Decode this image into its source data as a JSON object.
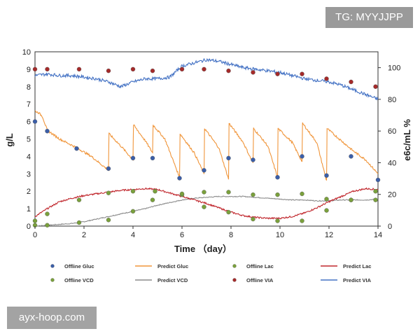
{
  "watermark_top": "TG: MYYJJPP",
  "watermark_bottom": "ayx-hoop.com",
  "chart_data": {
    "type": "line",
    "xlabel": "Time  （day）",
    "ylabel_left": "g/L",
    "ylabel_right": "e6c/mL   %",
    "xlim": [
      0,
      14
    ],
    "ylim_left": [
      0,
      10
    ],
    "ylim_right": [
      0,
      110
    ],
    "x_ticks": [
      "0",
      "2",
      "4",
      "6",
      "8",
      "10",
      "12",
      "14"
    ],
    "y_left_ticks": [
      "0",
      "1",
      "2",
      "3",
      "4",
      "5",
      "6",
      "7",
      "8",
      "9",
      "10"
    ],
    "y_right_ticks": [
      "0",
      "20",
      "40",
      "60",
      "80",
      "100"
    ],
    "colors": {
      "gluc_marker": "#3b5ea8",
      "gluc_line": "#f0953a",
      "lac_marker": "#7aa03c",
      "lac_line": "#c0262c",
      "vcd_marker": "#7aa03c",
      "vcd_line": "#8c8c8c",
      "via_marker": "#a52a2a",
      "via_line": "#4472c4"
    },
    "legend": [
      {
        "label": "Offline Gluc",
        "kind": "marker",
        "color": "#3b5ea8"
      },
      {
        "label": "Predict Gluc",
        "kind": "line",
        "color": "#f0953a"
      },
      {
        "label": "Offline Lac",
        "kind": "marker",
        "color": "#7aa03c"
      },
      {
        "label": "Predict Lac",
        "kind": "line",
        "color": "#c0262c"
      },
      {
        "label": "Offline VCD",
        "kind": "marker",
        "color": "#7aa03c"
      },
      {
        "label": "Predict VCD",
        "kind": "line",
        "color": "#8c8c8c"
      },
      {
        "label": "Offline VIA",
        "kind": "marker",
        "color": "#a52a2a"
      },
      {
        "label": "Predict VIA",
        "kind": "line",
        "color": "#4472c4"
      }
    ],
    "series": [
      {
        "name": "Offline Gluc",
        "axis": "left",
        "kind": "scatter",
        "x": [
          0,
          0.5,
          1.7,
          3.0,
          4.0,
          4.8,
          5.9,
          6.9,
          7.9,
          8.9,
          9.9,
          10.9,
          11.9,
          12.9,
          14.0
        ],
        "y": [
          6.0,
          5.45,
          4.45,
          3.3,
          3.9,
          3.9,
          2.75,
          3.2,
          3.9,
          3.8,
          2.8,
          4.0,
          2.9,
          4.0,
          2.65
        ]
      },
      {
        "name": "Offline Lac",
        "axis": "left",
        "kind": "scatter",
        "x": [
          0,
          0.5,
          1.8,
          3.0,
          4.0,
          4.9,
          6.0,
          6.9,
          7.9,
          8.9,
          9.9,
          10.9,
          11.9,
          12.9,
          13.9
        ],
        "y": [
          0.3,
          0.7,
          1.5,
          1.9,
          2.0,
          2.0,
          1.8,
          1.1,
          0.8,
          0.4,
          0.3,
          0.3,
          0.9,
          1.5,
          2.0
        ]
      },
      {
        "name": "Offline VCD",
        "axis": "left",
        "kind": "scatter",
        "x": [
          0,
          0.5,
          1.8,
          3.0,
          4.0,
          4.8,
          6.0,
          6.9,
          7.9,
          8.9,
          9.9,
          10.9,
          11.9,
          12.9,
          13.9
        ],
        "y": [
          0.05,
          0.05,
          0.2,
          0.35,
          0.85,
          1.5,
          1.85,
          1.95,
          1.95,
          1.8,
          1.8,
          1.85,
          1.55,
          1.5,
          1.5
        ]
      },
      {
        "name": "Offline VIA",
        "axis": "right",
        "kind": "scatter",
        "x": [
          0,
          0.5,
          1.8,
          3.0,
          4.0,
          4.8,
          6.0,
          6.9,
          7.9,
          8.9,
          9.9,
          10.9,
          11.9,
          12.9,
          13.9
        ],
        "y": [
          99,
          99,
          99,
          98,
          99,
          98,
          99,
          99,
          98,
          97,
          96,
          96,
          93,
          91,
          88
        ]
      },
      {
        "name": "Predict Gluc",
        "axis": "left",
        "kind": "line",
        "x": [
          0,
          0.15,
          0.3,
          0.5,
          1.0,
          1.7,
          2.3,
          3.0,
          3.02,
          3.5,
          4.0,
          4.02,
          4.5,
          4.8,
          4.82,
          5.3,
          5.9,
          5.92,
          6.5,
          6.9,
          6.92,
          7.5,
          7.9,
          7.92,
          8.5,
          8.9,
          8.92,
          9.5,
          9.9,
          9.92,
          10.5,
          10.9,
          10.92,
          11.5,
          11.9,
          11.92,
          12.5,
          13.0,
          13.5,
          14.0
        ],
        "y": [
          6.6,
          6.5,
          6.3,
          5.5,
          5.0,
          4.5,
          4.0,
          3.2,
          5.3,
          4.6,
          3.8,
          5.8,
          4.9,
          4.2,
          5.8,
          5.0,
          2.8,
          5.3,
          4.2,
          3.0,
          5.6,
          4.5,
          2.7,
          5.9,
          4.8,
          3.6,
          5.6,
          4.6,
          2.8,
          5.6,
          4.8,
          3.7,
          5.9,
          4.8,
          2.6,
          5.6,
          4.9,
          4.3,
          3.8,
          3.0
        ]
      },
      {
        "name": "Predict Lac",
        "axis": "left",
        "kind": "line",
        "x": [
          0,
          0.5,
          1.0,
          1.5,
          2.0,
          2.5,
          3.0,
          3.5,
          4.0,
          4.5,
          5.0,
          5.5,
          6.0,
          6.5,
          7.0,
          7.5,
          8.0,
          8.5,
          9.0,
          9.5,
          10.0,
          10.5,
          11.0,
          11.5,
          12.0,
          12.5,
          13.0,
          13.5,
          14.0
        ],
        "y": [
          0.55,
          1.0,
          1.4,
          1.6,
          1.75,
          1.85,
          1.95,
          2.05,
          2.1,
          2.15,
          2.1,
          1.9,
          1.7,
          1.5,
          1.3,
          1.05,
          0.8,
          0.6,
          0.5,
          0.45,
          0.45,
          0.55,
          0.75,
          1.05,
          1.4,
          1.7,
          2.0,
          2.15,
          2.1
        ]
      },
      {
        "name": "Predict VCD",
        "axis": "left",
        "kind": "line",
        "x": [
          0,
          0.5,
          1.0,
          1.5,
          2.0,
          2.5,
          3.0,
          3.5,
          4.0,
          4.5,
          5.0,
          5.5,
          6.0,
          6.5,
          7.0,
          7.5,
          8.0,
          8.5,
          9.0,
          9.5,
          10.0,
          10.5,
          11.0,
          11.5,
          12.0,
          12.5,
          13.0,
          13.5,
          14.0
        ],
        "y": [
          0.0,
          0.05,
          0.1,
          0.15,
          0.25,
          0.4,
          0.55,
          0.7,
          0.85,
          1.0,
          1.2,
          1.35,
          1.5,
          1.6,
          1.65,
          1.7,
          1.7,
          1.7,
          1.65,
          1.6,
          1.55,
          1.5,
          1.5,
          1.45,
          1.45,
          1.5,
          1.5,
          1.5,
          1.55
        ]
      },
      {
        "name": "Predict VIA",
        "axis": "right",
        "kind": "line",
        "x": [
          0,
          0.5,
          1.0,
          1.5,
          2.0,
          2.5,
          3.0,
          3.5,
          4.0,
          4.5,
          5.0,
          5.5,
          6.0,
          6.5,
          7.0,
          7.5,
          8.0,
          8.5,
          9.0,
          9.5,
          10.0,
          10.5,
          11.0,
          11.5,
          12.0,
          12.5,
          13.0,
          13.5,
          14.0
        ],
        "y": [
          95,
          96,
          95,
          95,
          94,
          93,
          91,
          88,
          91,
          93,
          93,
          94,
          101,
          103,
          105,
          104,
          102,
          100,
          99,
          98,
          97,
          95,
          93,
          92,
          91,
          89,
          86,
          83,
          80
        ]
      }
    ]
  }
}
